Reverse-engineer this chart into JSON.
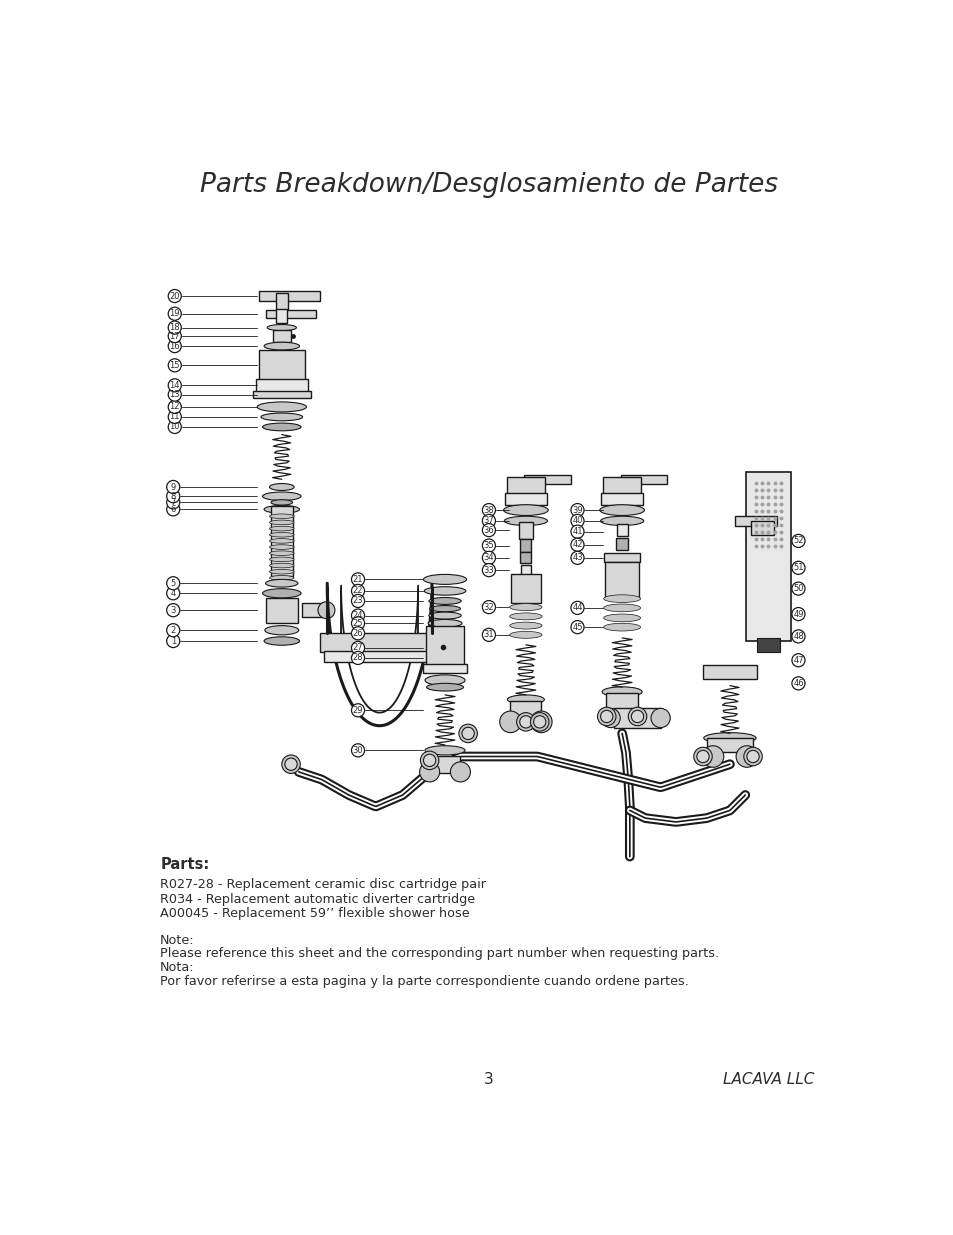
{
  "title": "Parts Breakdown/Desglosamiento de Partes",
  "title_fontsize": 19,
  "parts_header": "Parts:",
  "parts_lines": [
    "R027-28 - Replacement ceramic disc cartridge pair",
    "R034 - Replacement automatic diverter cartridge",
    "A00045 - Replacement 59’’ flexible shower hose"
  ],
  "note_lines": [
    "Note:",
    "Please reference this sheet and the corresponding part number when requesting parts.",
    "Nota:",
    "Por favor referirse a esta pagina y la parte correspondiente cuando ordene partes."
  ],
  "page_number": "3",
  "company": "LACAVA LLC",
  "bg_color": "#ffffff",
  "text_color": "#2d2d2d",
  "dark": "#1a1a1a",
  "gray1": "#c8c8c8",
  "gray2": "#d8d8d8",
  "gray3": "#e8e8e8",
  "gray4": "#b0b0b0",
  "gray5": "#a0a0a0"
}
